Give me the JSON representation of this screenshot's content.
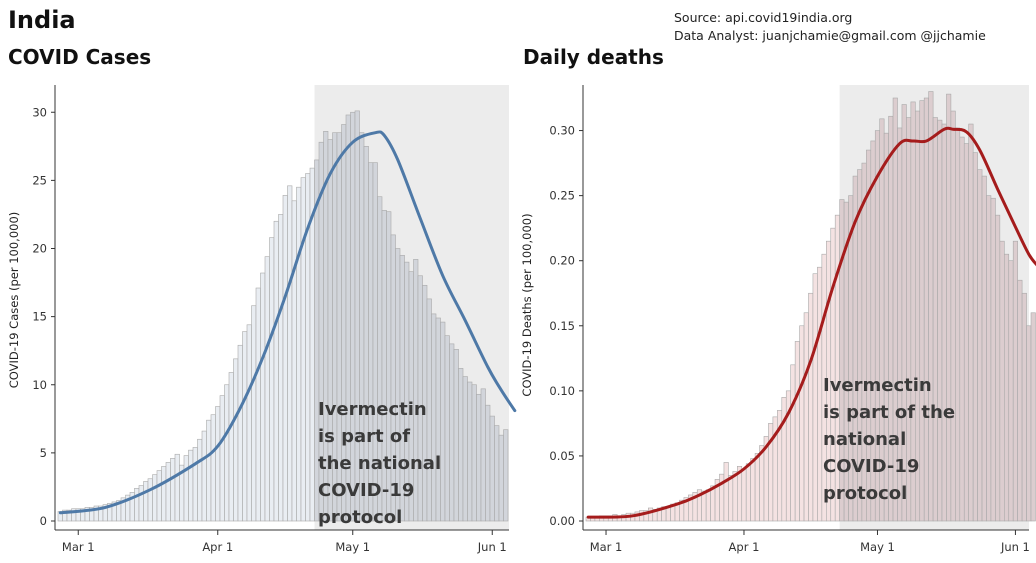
{
  "header": {
    "country": "India",
    "source": "Source: api.covid19india.org",
    "analyst": "Data Analyst:  juanjchamie@gmail.com @jjchamie"
  },
  "chart_data": [
    {
      "type": "bar",
      "title": "COVID Cases",
      "ylabel": "COVID-19 Cases (per 100,000)",
      "xlabel": "",
      "ylim": [
        0,
        32
      ],
      "yticks": [
        0,
        5,
        10,
        15,
        20,
        25,
        30
      ],
      "xtick_labels": [
        "Mar 1",
        "Apr 1",
        "May 1",
        "Jun 1"
      ],
      "xtick_days": [
        4,
        35,
        65,
        96
      ],
      "shaded_from_day": 57,
      "line_color": "#4e79a7",
      "annotation": [
        "Ivermectin",
        "is part of",
        "the national",
        "COVID-19",
        "protocol"
      ],
      "bars": [
        0.7,
        0.8,
        0.8,
        0.9,
        0.9,
        0.9,
        1.0,
        1.0,
        1.1,
        1.1,
        1.2,
        1.3,
        1.4,
        1.5,
        1.7,
        1.9,
        2.1,
        2.4,
        2.6,
        2.9,
        3.1,
        3.4,
        3.7,
        4.0,
        4.3,
        4.6,
        4.9,
        4.1,
        4.8,
        5.2,
        5.4,
        6.0,
        6.6,
        7.4,
        7.8,
        8.4,
        9.2,
        10.0,
        10.9,
        11.9,
        12.9,
        13.9,
        14.4,
        15.8,
        17.1,
        18.2,
        19.4,
        20.8,
        22.0,
        22.5,
        23.9,
        24.6,
        23.5,
        24.5,
        25.2,
        25.5,
        25.9,
        26.5,
        27.8,
        28.6,
        28.0,
        28.5,
        28.5,
        29.1,
        29.8,
        30.0,
        30.1,
        28.5,
        27.5,
        26.3,
        26.3,
        23.8,
        22.8,
        22.7,
        21.0,
        20.0,
        19.5,
        19.0,
        18.3,
        19.2,
        18.0,
        17.3,
        16.3,
        15.2,
        14.9,
        14.6,
        13.6,
        13.0,
        12.6,
        11.2,
        10.6,
        10.2,
        10.0,
        9.3,
        9.7,
        8.5,
        7.7,
        7.0,
        6.3,
        6.7
      ],
      "smooth": [
        [
          0,
          0.6
        ],
        [
          10,
          1.0
        ],
        [
          20,
          2.3
        ],
        [
          30,
          4.2
        ],
        [
          35,
          5.5
        ],
        [
          40,
          8.3
        ],
        [
          45,
          12.0
        ],
        [
          50,
          16.5
        ],
        [
          55,
          21.5
        ],
        [
          60,
          25.5
        ],
        [
          65,
          27.8
        ],
        [
          70,
          28.5
        ],
        [
          72,
          28.3
        ],
        [
          75,
          26.5
        ],
        [
          80,
          22.2
        ],
        [
          85,
          18.0
        ],
        [
          90,
          14.7
        ],
        [
          95,
          11.3
        ],
        [
          98,
          9.6
        ],
        [
          101,
          8.1
        ]
      ]
    },
    {
      "type": "bar",
      "title": "Daily deaths",
      "ylabel": "COVID-19 Deaths (per 100,000)",
      "xlabel": "",
      "ylim": [
        0,
        0.335
      ],
      "yticks": [
        0.0,
        0.05,
        0.1,
        0.15,
        0.2,
        0.25,
        0.3
      ],
      "ytick_labels": [
        "0.00",
        "0.05",
        "0.10",
        "0.15",
        "0.20",
        "0.25",
        "0.30"
      ],
      "xtick_labels": [
        "Mar 1",
        "Apr 1",
        "May 1",
        "Jun 1"
      ],
      "xtick_days": [
        4,
        35,
        65,
        96
      ],
      "shaded_from_day": 57,
      "line_color": "#a51c1c",
      "annotation": [
        "Ivermectin",
        "is part of the",
        "national",
        "COVID-19",
        "protocol"
      ],
      "bars": [
        0.003,
        0.003,
        0.003,
        0.004,
        0.004,
        0.004,
        0.005,
        0.004,
        0.005,
        0.006,
        0.006,
        0.007,
        0.008,
        0.008,
        0.01,
        0.009,
        0.01,
        0.011,
        0.011,
        0.013,
        0.014,
        0.016,
        0.018,
        0.02,
        0.022,
        0.024,
        0.023,
        0.024,
        0.027,
        0.032,
        0.036,
        0.045,
        0.035,
        0.038,
        0.042,
        0.04,
        0.044,
        0.048,
        0.052,
        0.058,
        0.065,
        0.075,
        0.08,
        0.085,
        0.095,
        0.1,
        0.12,
        0.138,
        0.15,
        0.16,
        0.175,
        0.19,
        0.195,
        0.205,
        0.215,
        0.225,
        0.235,
        0.247,
        0.245,
        0.25,
        0.265,
        0.27,
        0.275,
        0.285,
        0.292,
        0.3,
        0.309,
        0.298,
        0.311,
        0.325,
        0.302,
        0.32,
        0.31,
        0.322,
        0.315,
        0.323,
        0.325,
        0.33,
        0.31,
        0.308,
        0.305,
        0.328,
        0.315,
        0.302,
        0.295,
        0.29,
        0.305,
        0.283,
        0.27,
        0.265,
        0.25,
        0.248,
        0.235,
        0.215,
        0.205,
        0.2,
        0.215,
        0.185,
        0.175,
        0.15,
        0.16
      ],
      "smooth": [
        [
          0,
          0.003
        ],
        [
          10,
          0.004
        ],
        [
          20,
          0.013
        ],
        [
          25,
          0.02
        ],
        [
          30,
          0.029
        ],
        [
          35,
          0.04
        ],
        [
          40,
          0.057
        ],
        [
          45,
          0.083
        ],
        [
          50,
          0.123
        ],
        [
          55,
          0.18
        ],
        [
          60,
          0.23
        ],
        [
          65,
          0.265
        ],
        [
          70,
          0.29
        ],
        [
          73,
          0.292
        ],
        [
          76,
          0.292
        ],
        [
          80,
          0.301
        ],
        [
          82,
          0.301
        ],
        [
          85,
          0.299
        ],
        [
          88,
          0.285
        ],
        [
          92,
          0.255
        ],
        [
          96,
          0.226
        ],
        [
          99,
          0.205
        ],
        [
          101,
          0.196
        ]
      ]
    }
  ]
}
